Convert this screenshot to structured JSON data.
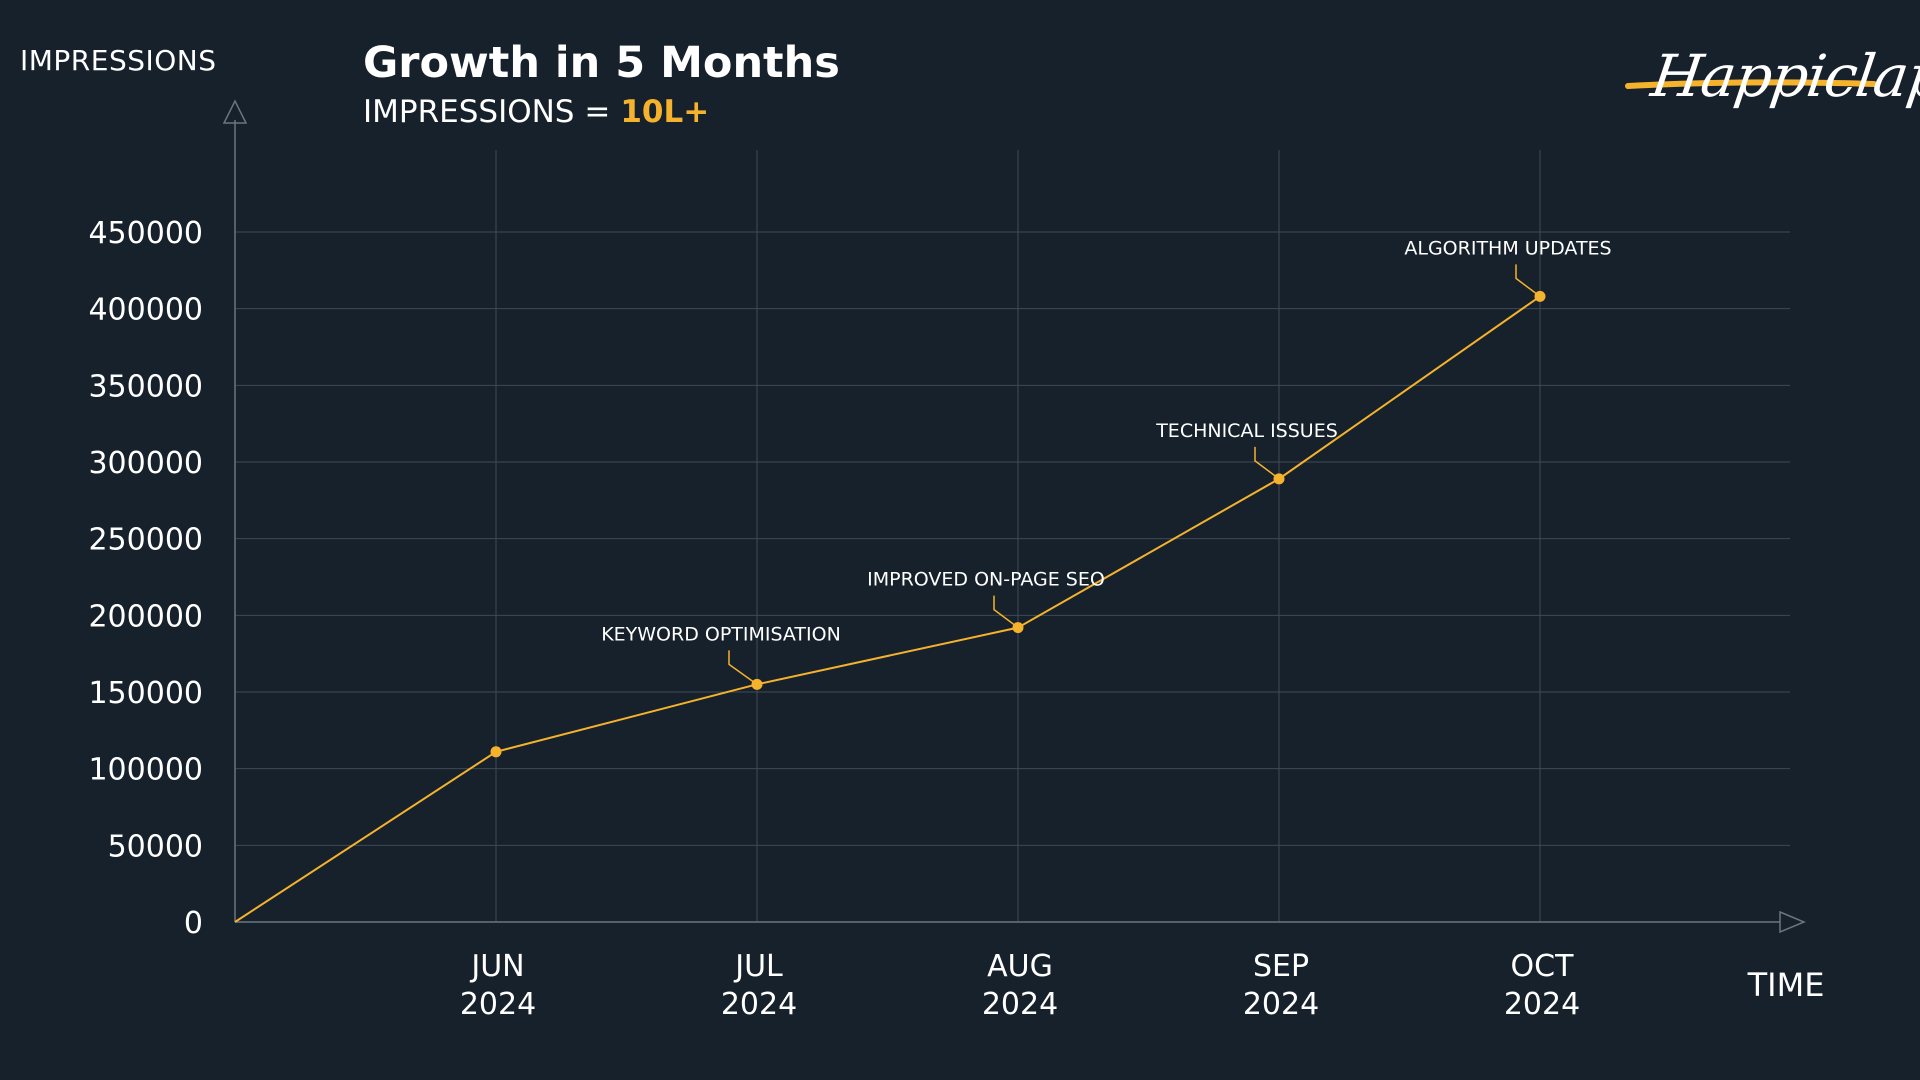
{
  "header": {
    "y_axis_title": "IMPRESSIONS",
    "title": "Growth in 5 Months",
    "subtitle_label": "IMPRESSIONS =",
    "subtitle_value": "10L+",
    "logo_text": "Happiclap"
  },
  "colors": {
    "background": "#17212b",
    "accent": "#f5b22d",
    "grid": "#3f4a55",
    "axis": "#6b7580",
    "text": "#ffffff"
  },
  "chart_data": {
    "type": "line",
    "title": "Growth in 5 Months",
    "ylabel": "IMPRESSIONS",
    "xlabel": "TIME",
    "ylim": [
      0,
      450000
    ],
    "yticks": [
      0,
      50000,
      100000,
      150000,
      200000,
      250000,
      300000,
      350000,
      400000,
      450000
    ],
    "ytick_labels": [
      "0",
      "50000",
      "100000",
      "150000",
      "200000",
      "250000",
      "300000",
      "350000",
      "400000",
      "450000"
    ],
    "origin": {
      "x_index": 0,
      "value": 0
    },
    "categories": [
      {
        "month": "JUN",
        "year": "2024"
      },
      {
        "month": "JUL",
        "year": "2024"
      },
      {
        "month": "AUG",
        "year": "2024"
      },
      {
        "month": "SEP",
        "year": "2024"
      },
      {
        "month": "OCT",
        "year": "2024"
      }
    ],
    "values": [
      111000,
      155000,
      192000,
      289000,
      408000
    ],
    "annotations": [
      null,
      "KEYWORD OPTIMISATION",
      "IMPROVED ON-PAGE SEO",
      "TECHNICAL ISSUES",
      "ALGORITHM UPDATES"
    ],
    "grid": true
  }
}
